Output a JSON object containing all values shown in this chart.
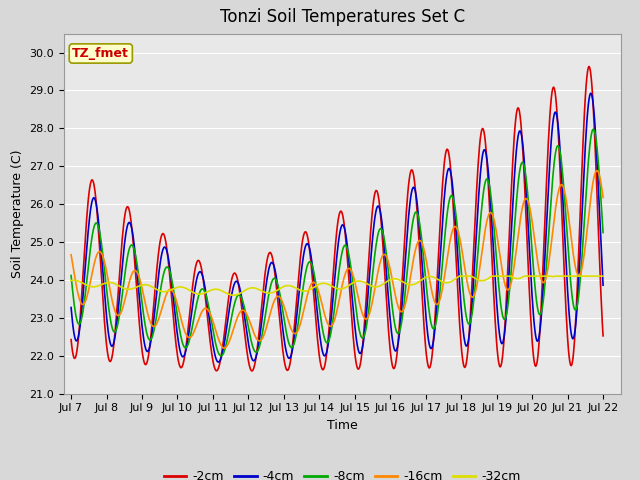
{
  "title": "Tonzi Soil Temperatures Set C",
  "xlabel": "Time",
  "ylabel": "Soil Temperature (C)",
  "ylim": [
    21.0,
    30.5
  ],
  "yticks": [
    21.0,
    22.0,
    23.0,
    24.0,
    25.0,
    26.0,
    27.0,
    28.0,
    29.0,
    30.0
  ],
  "xtick_labels": [
    "Jul 7",
    "Jul 8",
    "Jul 9",
    "Jul 10",
    "Jul 11",
    "Jul 12",
    "Jul 13",
    "Jul 14",
    "Jul 15",
    "Jul 16",
    "Jul 17",
    "Jul 18",
    "Jul 19",
    "Jul 20",
    "Jul 21",
    "Jul 22"
  ],
  "line_colors": {
    "-2cm": "#dd0000",
    "-4cm": "#0000cc",
    "-8cm": "#00aa00",
    "-16cm": "#ff8800",
    "-32cm": "#dddd00"
  },
  "line_width": 1.2,
  "annotation_text": "TZ_fmet",
  "annotation_color": "#cc0000",
  "annotation_bg": "#ffffcc",
  "annotation_border": "#999900",
  "fig_bg": "#d8d8d8",
  "plot_bg": "#e8e8e8",
  "grid_color": "#ffffff",
  "title_fontsize": 12,
  "axis_fontsize": 9,
  "tick_fontsize": 8,
  "legend_fontsize": 9
}
